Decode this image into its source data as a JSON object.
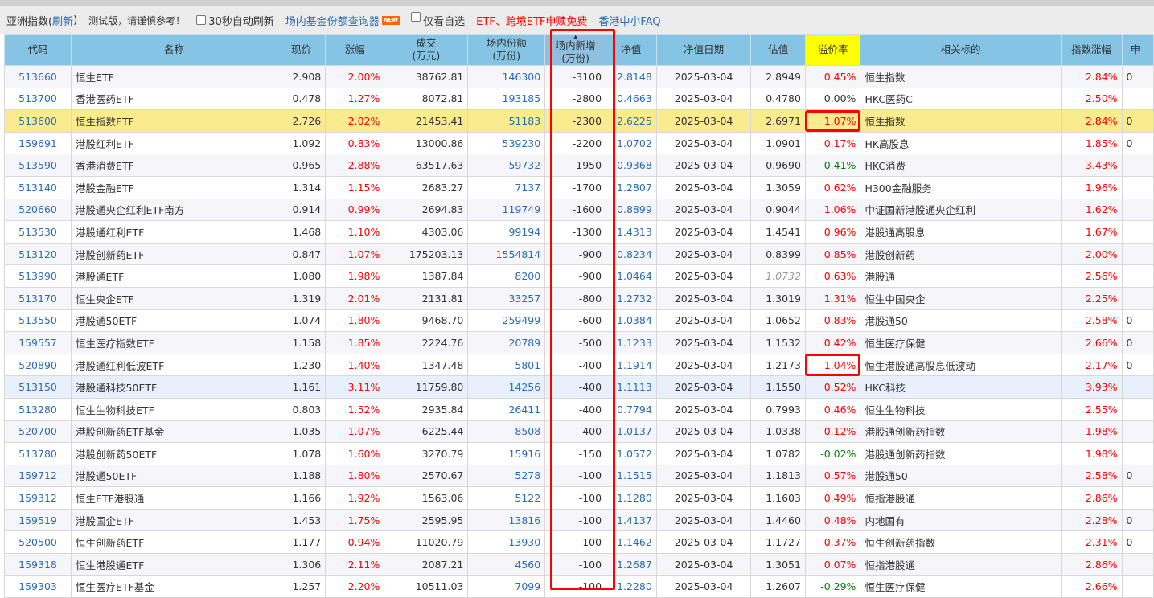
{
  "toolbar": {
    "index_label": "亚洲指数(",
    "refresh_link": "刷新",
    "index_close": ")",
    "notice": "测试版，请谨慎参考！",
    "auto_refresh_label": "30秒自动刷新",
    "fund_query_link": "场内基金份额查询器",
    "new_badge": "NEW",
    "watchlist_label": "仅看自选",
    "promo_link": "ETF、跨境ETF申赎免费",
    "faq_link": "香港中小FAQ"
  },
  "colors": {
    "header_bg": "#86c4e6",
    "highlight_row": "#faeb8f",
    "up": "#ff0000",
    "down": "#008000",
    "link": "#2a6cb5",
    "annotation": "#ff0000"
  },
  "columns": [
    {
      "line1": "代码"
    },
    {
      "line1": "名称"
    },
    {
      "line1": "现价"
    },
    {
      "line1": "涨幅"
    },
    {
      "line1": "成交",
      "line2": "(万元)"
    },
    {
      "line1": "场内份额",
      "line2": "(万份)"
    },
    {
      "line1": "场内新增",
      "line2": "(万份)",
      "sorted": "asc"
    },
    {
      "line1": "净值"
    },
    {
      "line1": "净值日期"
    },
    {
      "line1": "估值"
    },
    {
      "line1": "溢价率",
      "highlight": true
    },
    {
      "line1": "相关标的"
    },
    {
      "line1": "指数涨幅"
    },
    {
      "line1": "申"
    }
  ],
  "rows": [
    {
      "code": "513660",
      "name": "恒生ETF",
      "price": "2.908",
      "chg": "2.00%",
      "vol": "38762.81",
      "shares": "146300",
      "new": "-3100",
      "nav": "2.8148",
      "date": "2025-03-04",
      "est": "2.8949",
      "prem": "0.45%",
      "ref": "恒生指数",
      "idx": "2.84%",
      "last": "0"
    },
    {
      "code": "513700",
      "name": "香港医药ETF",
      "price": "0.478",
      "chg": "1.27%",
      "vol": "8072.81",
      "shares": "193185",
      "new": "-2800",
      "nav": "0.4663",
      "date": "2025-03-04",
      "est": "0.4780",
      "prem": "0.00%",
      "ref": "HKC医药C",
      "idx": "2.50%",
      "last": ""
    },
    {
      "code": "513600",
      "name": "恒生指数ETF",
      "price": "2.726",
      "chg": "2.02%",
      "vol": "21453.41",
      "shares": "51183",
      "new": "-2300",
      "nav": "2.6225",
      "date": "2025-03-04",
      "est": "2.6971",
      "prem": "1.07%",
      "ref": "恒生指数",
      "idx": "2.84%",
      "last": "0",
      "highlighted": true,
      "prem_boxed": true
    },
    {
      "code": "159691",
      "name": "港股红利ETF",
      "price": "1.092",
      "chg": "0.83%",
      "vol": "13000.86",
      "shares": "539230",
      "new": "-2200",
      "nav": "1.0702",
      "date": "2025-03-04",
      "est": "1.0901",
      "prem": "0.17%",
      "ref": "HK高股息",
      "idx": "1.85%",
      "last": "0"
    },
    {
      "code": "513590",
      "name": "香港消费ETF",
      "price": "0.965",
      "chg": "2.88%",
      "vol": "63517.63",
      "shares": "59732",
      "new": "-1950",
      "nav": "0.9368",
      "date": "2025-03-04",
      "est": "0.9690",
      "prem": "-0.41%",
      "ref": "HKC消费",
      "idx": "3.43%",
      "last": ""
    },
    {
      "code": "513140",
      "name": "港股金融ETF",
      "price": "1.314",
      "chg": "1.15%",
      "vol": "2683.27",
      "shares": "7137",
      "new": "-1700",
      "nav": "1.2807",
      "date": "2025-03-04",
      "est": "1.3059",
      "prem": "0.62%",
      "ref": "H300金融服务",
      "idx": "1.96%",
      "last": ""
    },
    {
      "code": "520660",
      "name": "港股通央企红利ETF南方",
      "price": "0.914",
      "chg": "0.99%",
      "vol": "2694.83",
      "shares": "119749",
      "new": "-1600",
      "nav": "0.8899",
      "date": "2025-03-04",
      "est": "0.9044",
      "prem": "1.06%",
      "ref": "中证国新港股通央企红利",
      "idx": "1.62%",
      "last": ""
    },
    {
      "code": "513530",
      "name": "港股通红利ETF",
      "price": "1.468",
      "chg": "1.10%",
      "vol": "4303.06",
      "shares": "99194",
      "new": "-1300",
      "nav": "1.4313",
      "date": "2025-03-04",
      "est": "1.4541",
      "prem": "0.96%",
      "ref": "港股通高股息",
      "idx": "1.67%",
      "last": ""
    },
    {
      "code": "513120",
      "name": "港股创新药ETF",
      "price": "0.847",
      "chg": "1.07%",
      "vol": "175203.13",
      "shares": "1554814",
      "new": "-900",
      "nav": "0.8234",
      "date": "2025-03-04",
      "est": "0.8399",
      "prem": "0.85%",
      "ref": "港股创新药",
      "idx": "2.00%",
      "last": ""
    },
    {
      "code": "513990",
      "name": "港股通ETF",
      "price": "1.080",
      "chg": "1.98%",
      "vol": "1387.84",
      "shares": "8200",
      "new": "-900",
      "nav": "1.0464",
      "date": "2025-03-04",
      "est": "1.0732",
      "est_italic": true,
      "prem": "0.63%",
      "ref": "港股通",
      "idx": "2.56%",
      "last": ""
    },
    {
      "code": "513170",
      "name": "恒生央企ETF",
      "price": "1.319",
      "chg": "2.01%",
      "vol": "2131.81",
      "shares": "33257",
      "new": "-800",
      "nav": "1.2732",
      "date": "2025-03-04",
      "est": "1.3019",
      "prem": "1.31%",
      "ref": "恒生中国央企",
      "idx": "2.25%",
      "last": ""
    },
    {
      "code": "513550",
      "name": "港股通50ETF",
      "price": "1.074",
      "chg": "1.80%",
      "vol": "9468.70",
      "shares": "259499",
      "new": "-600",
      "nav": "1.0384",
      "date": "2025-03-04",
      "est": "1.0652",
      "prem": "0.83%",
      "ref": "港股通50",
      "idx": "2.58%",
      "last": "0"
    },
    {
      "code": "159557",
      "name": "恒生医疗指数ETF",
      "price": "1.158",
      "chg": "1.85%",
      "vol": "2224.76",
      "shares": "20789",
      "new": "-500",
      "nav": "1.1233",
      "date": "2025-03-04",
      "est": "1.1532",
      "prem": "0.42%",
      "ref": "恒生医疗保健",
      "idx": "2.66%",
      "last": "0"
    },
    {
      "code": "520890",
      "name": "港股通红利低波ETF",
      "price": "1.230",
      "chg": "1.40%",
      "vol": "1347.48",
      "shares": "5801",
      "new": "-400",
      "nav": "1.1914",
      "date": "2025-03-04",
      "est": "1.2173",
      "prem": "1.04%",
      "ref": "恒生港股通高股息低波动",
      "idx": "2.17%",
      "last": "0",
      "prem_boxed": true
    },
    {
      "code": "513150",
      "name": "港股通科技50ETF",
      "price": "1.161",
      "chg": "3.11%",
      "vol": "11759.80",
      "shares": "14256",
      "new": "-400",
      "nav": "1.1113",
      "date": "2025-03-04",
      "est": "1.1550",
      "prem": "0.52%",
      "ref": "HKC科技",
      "idx": "3.93%",
      "last": "",
      "selected": true
    },
    {
      "code": "513280",
      "name": "恒生生物科技ETF",
      "price": "0.803",
      "chg": "1.52%",
      "vol": "2935.84",
      "shares": "26411",
      "new": "-400",
      "nav": "0.7794",
      "date": "2025-03-04",
      "est": "0.7993",
      "prem": "0.46%",
      "ref": "恒生生物科技",
      "idx": "2.55%",
      "last": ""
    },
    {
      "code": "520700",
      "name": "港股创新药ETF基金",
      "price": "1.035",
      "chg": "1.07%",
      "vol": "6225.44",
      "shares": "8508",
      "new": "-400",
      "nav": "1.0137",
      "date": "2025-03-04",
      "est": "1.0338",
      "prem": "0.12%",
      "ref": "港股通创新药指数",
      "idx": "1.98%",
      "last": ""
    },
    {
      "code": "513780",
      "name": "港股创新药50ETF",
      "price": "1.078",
      "chg": "1.60%",
      "vol": "3270.79",
      "shares": "15916",
      "new": "-150",
      "nav": "1.0572",
      "date": "2025-03-04",
      "est": "1.0782",
      "prem": "-0.02%",
      "ref": "港股通创新药指数",
      "idx": "1.98%",
      "last": ""
    },
    {
      "code": "159712",
      "name": "港股通50ETF",
      "price": "1.188",
      "chg": "1.80%",
      "vol": "2570.67",
      "shares": "5278",
      "new": "-100",
      "nav": "1.1515",
      "date": "2025-03-04",
      "est": "1.1813",
      "prem": "0.57%",
      "ref": "港股通50",
      "idx": "2.58%",
      "last": "0"
    },
    {
      "code": "159312",
      "name": "恒生ETF港股通",
      "price": "1.166",
      "chg": "1.92%",
      "vol": "1563.06",
      "shares": "5122",
      "new": "-100",
      "nav": "1.1280",
      "date": "2025-03-04",
      "est": "1.1603",
      "prem": "0.49%",
      "ref": "恒指港股通",
      "idx": "2.86%",
      "last": ""
    },
    {
      "code": "159519",
      "name": "港股国企ETF",
      "price": "1.453",
      "chg": "1.75%",
      "vol": "2595.95",
      "shares": "13816",
      "new": "-100",
      "nav": "1.4137",
      "date": "2025-03-04",
      "est": "1.4460",
      "prem": "0.48%",
      "ref": "内地国有",
      "idx": "2.28%",
      "last": "0"
    },
    {
      "code": "520500",
      "name": "恒生创新药ETF",
      "price": "1.177",
      "chg": "0.94%",
      "vol": "11020.79",
      "shares": "13930",
      "new": "-100",
      "nav": "1.1462",
      "date": "2025-03-04",
      "est": "1.1727",
      "prem": "0.37%",
      "ref": "恒生创新药指数",
      "idx": "2.31%",
      "last": "0"
    },
    {
      "code": "159318",
      "name": "恒生港股通ETF",
      "price": "1.306",
      "chg": "2.11%",
      "vol": "2087.21",
      "shares": "4560",
      "new": "-100",
      "nav": "1.2687",
      "date": "2025-03-04",
      "est": "1.3051",
      "prem": "0.07%",
      "ref": "恒指港股通",
      "idx": "2.86%",
      "last": ""
    },
    {
      "code": "159303",
      "name": "恒生医疗ETF基金",
      "price": "1.257",
      "chg": "2.20%",
      "vol": "10511.03",
      "shares": "7099",
      "new": "-100",
      "nav": "1.2280",
      "date": "2025-03-04",
      "est": "1.2607",
      "prem": "-0.29%",
      "ref": "恒生医疗保健",
      "idx": "2.66%",
      "last": ""
    }
  ]
}
